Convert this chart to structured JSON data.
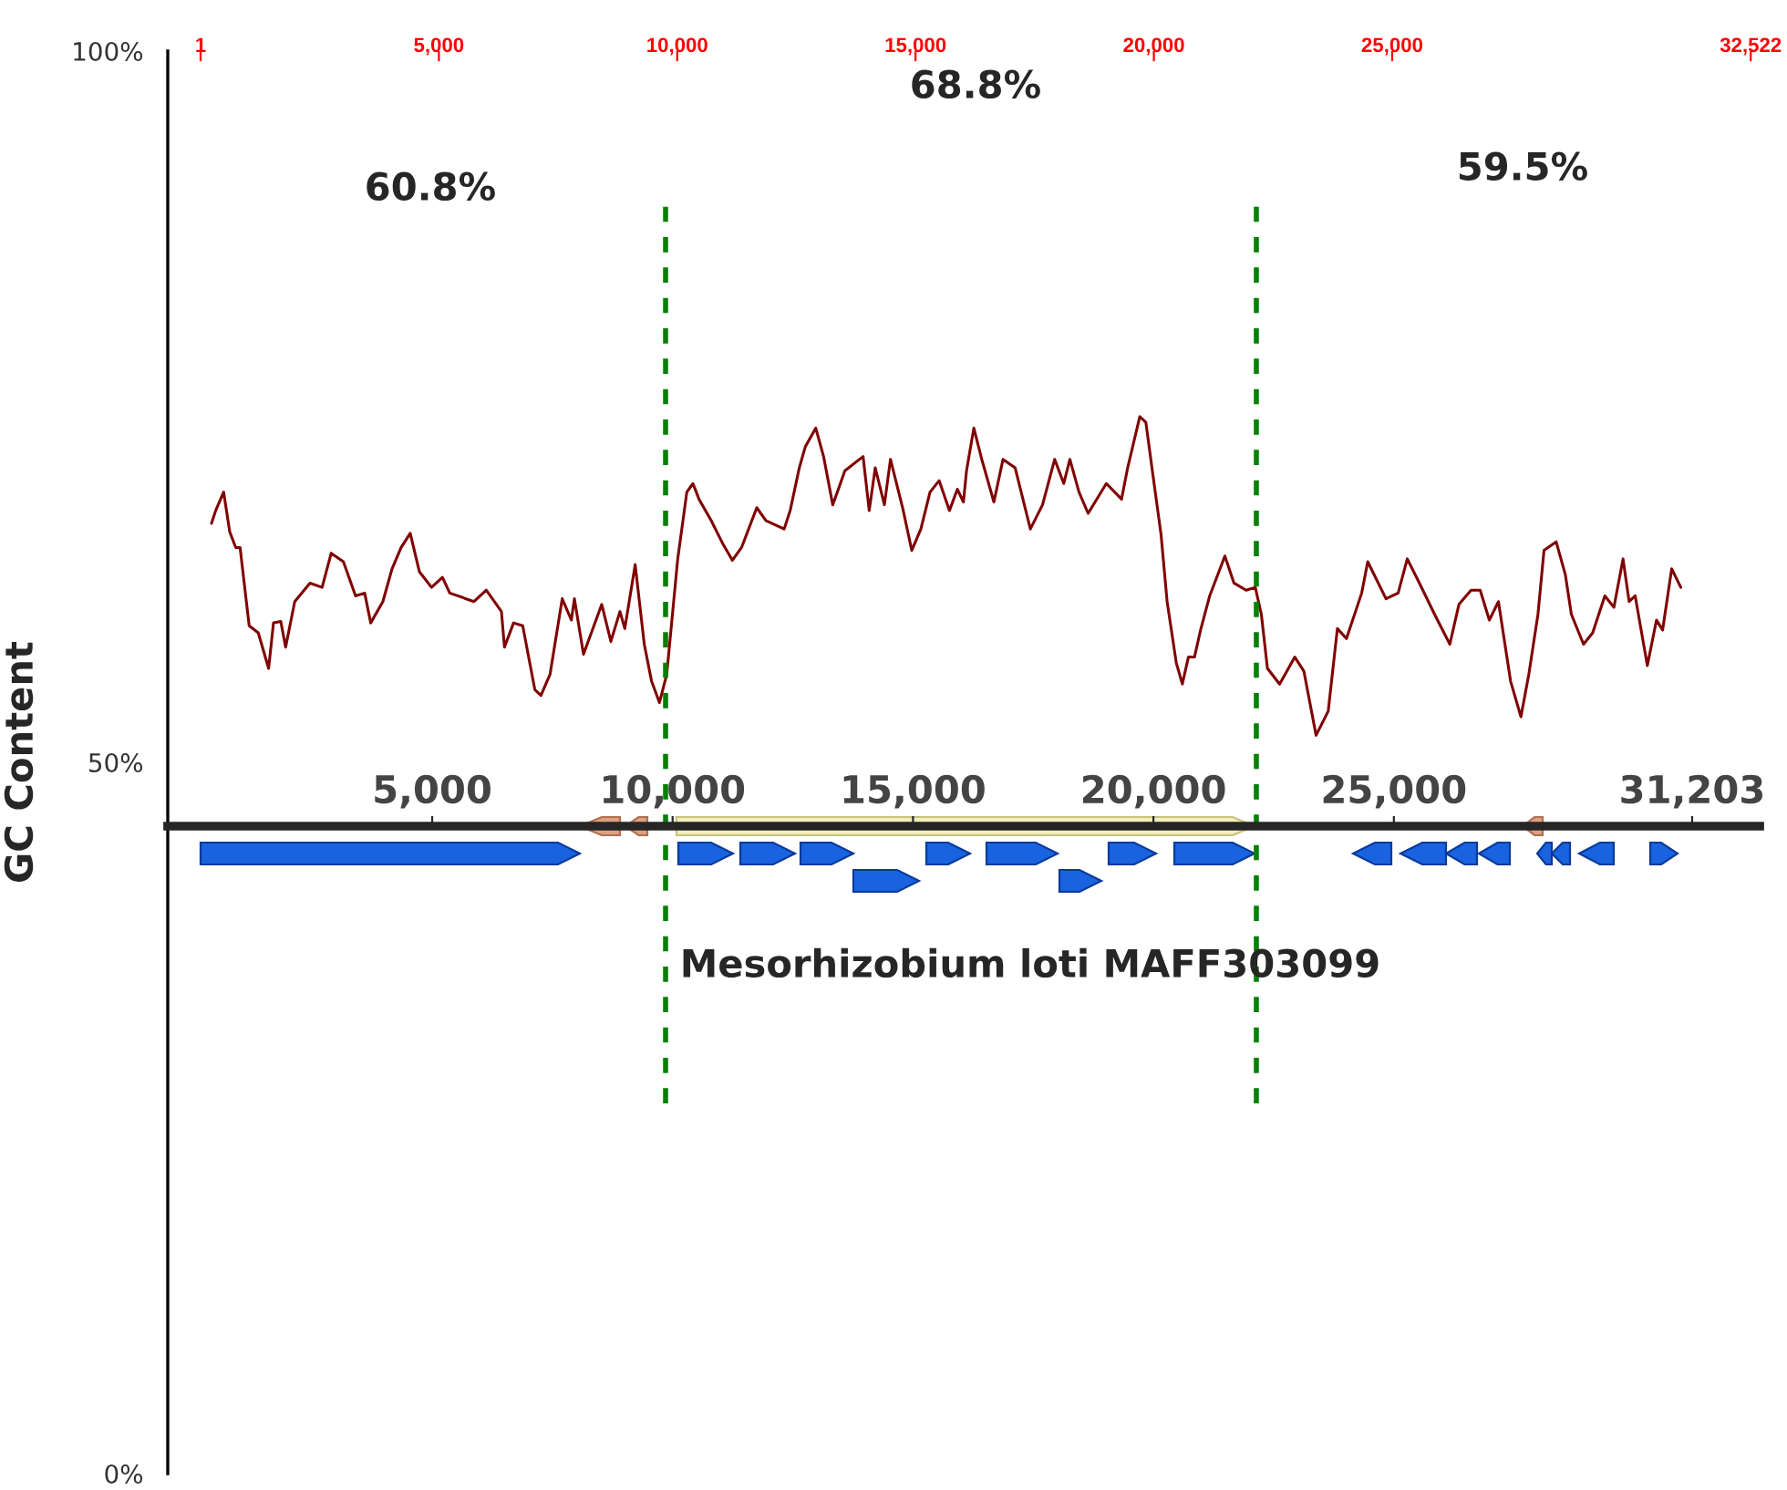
{
  "chart_data": {
    "type": "line",
    "ylabel": "GC Content",
    "xlim": [
      -688,
      32709
    ],
    "xticks": [
      1,
      {
        "value": 5000,
        "label": "5,000"
      },
      {
        "value": 10000,
        "label": "10,000"
      },
      {
        "value": 15000,
        "label": "15,000"
      },
      {
        "value": 20000,
        "label": "20,000"
      },
      {
        "value": 25000,
        "label": "25,000"
      },
      {
        "value": 32522,
        "label": "32,522"
      }
    ],
    "x2lim": [
      -499,
      32607
    ],
    "x2ticks": [
      {
        "value": 5000,
        "label": "5,000"
      },
      {
        "value": 10000,
        "label": "10,000"
      },
      {
        "value": 15000,
        "label": "15,000"
      },
      {
        "value": 20000,
        "label": "20,000"
      },
      {
        "value": 25000,
        "label": "25,000"
      },
      {
        "value": 31203,
        "label": "31,203"
      }
    ],
    "ylim": [
      0,
      100
    ],
    "yticks": [
      {
        "value": 0,
        "label": "0%"
      },
      {
        "value": 50,
        "label": "50%"
      },
      {
        "value": 100,
        "label": "100%"
      }
    ],
    "grid": false,
    "x": [
      229,
      318,
      484,
      612,
      739,
      829,
      1020,
      1211,
      1428,
      1530,
      1683,
      1785,
      1976,
      2295,
      2550,
      2741,
      2997,
      3252,
      3443,
      3570,
      3825,
      4017,
      4208,
      4399,
      4591,
      4846,
      5075,
      5228,
      5738,
      5994,
      6312,
      6376,
      6567,
      6759,
      7014,
      7141,
      7333,
      7588,
      7779,
      7843,
      8034,
      8417,
      8608,
      8799,
      8901,
      9118,
      9309,
      9462,
      9628,
      9781,
      9883,
      10011,
      10202,
      10330,
      10457,
      10712,
      10967,
      11158,
      11350,
      11669,
      11860,
      12243,
      12370,
      12561,
      12689,
      12906,
      13071,
      13263,
      13518,
      13900,
      14028,
      14155,
      14347,
      14474,
      14729,
      14921,
      15112,
      15304,
      15495,
      15712,
      15877,
      16005,
      16070,
      16223,
      16389,
      16644,
      16835,
      17090,
      17409,
      17664,
      17919,
      18110,
      18238,
      18429,
      18621,
      19003,
      19322,
      19450,
      19705,
      19832,
      19960,
      20151,
      20278,
      20470,
      20597,
      20725,
      20852,
      20980,
      21171,
      21490,
      21681,
      21936,
      22128,
      22255,
      22383,
      22638,
      22957,
      23148,
      23403,
      23658,
      23850,
      24041,
      24360,
      24487,
      24870,
      25125,
      25316,
      25571,
      25890,
      26209,
      26400,
      26655,
      26846,
      27038,
      27229,
      27484,
      27701,
      27867,
      28058,
      28185,
      28440,
      28632,
      28759,
      29014,
      29206,
      29461,
      29652,
      29843,
      29971,
      30098,
      30353,
      30545,
      30673,
      30864,
      31055
    ],
    "series": [
      {
        "color": "#800000",
        "values": [
          66.8,
          67.7,
          69.0,
          66.2,
          65.1,
          65.1,
          59.6,
          59.1,
          56.6,
          59.8,
          59.9,
          58.1,
          61.3,
          62.6,
          62.3,
          64.7,
          64.1,
          61.7,
          61.9,
          59.8,
          61.3,
          63.6,
          65.1,
          66.1,
          63.4,
          62.3,
          63.0,
          61.9,
          61.3,
          62.1,
          60.6,
          58.1,
          59.8,
          59.6,
          55.1,
          54.7,
          56.2,
          61.5,
          60.0,
          61.5,
          57.6,
          61.1,
          58.5,
          60.6,
          59.4,
          63.9,
          58.3,
          55.7,
          54.2,
          56.2,
          59.8,
          64.3,
          69.0,
          69.6,
          68.5,
          67.0,
          65.3,
          64.2,
          65.1,
          67.9,
          67.0,
          66.4,
          67.7,
          70.7,
          72.2,
          73.5,
          71.5,
          68.1,
          70.5,
          71.5,
          67.7,
          70.7,
          68.1,
          71.3,
          67.9,
          64.9,
          66.4,
          69.0,
          69.8,
          67.7,
          69.2,
          68.3,
          70.5,
          73.5,
          71.3,
          68.3,
          71.3,
          70.7,
          66.4,
          68.1,
          71.3,
          69.6,
          71.3,
          69.0,
          67.5,
          69.6,
          68.5,
          70.7,
          74.3,
          73.9,
          70.7,
          66.0,
          61.3,
          57.0,
          55.5,
          57.4,
          57.4,
          59.3,
          61.7,
          64.5,
          62.6,
          62.1,
          62.3,
          60.4,
          56.6,
          55.5,
          57.4,
          56.4,
          51.9,
          53.6,
          59.4,
          58.7,
          61.9,
          64.1,
          61.5,
          61.9,
          64.3,
          62.6,
          60.4,
          58.3,
          61.1,
          62.1,
          62.1,
          60.0,
          61.3,
          55.7,
          53.2,
          56.2,
          60.4,
          64.9,
          65.5,
          63.2,
          60.4,
          58.3,
          59.1,
          61.7,
          60.9,
          64.3,
          61.3,
          61.7,
          56.8,
          60.0,
          59.3,
          63.6,
          62.3
        ]
      }
    ],
    "ref_lines": [
      {
        "axis": "x",
        "value": 9756,
        "color": "#008000",
        "line_style": "dashed"
      },
      {
        "axis": "x",
        "value": 22150,
        "color": "#008000",
        "line_style": "dashed"
      }
    ],
    "annotations": [
      "60.8%",
      "68.8%",
      "59.5%",
      "Mesorhizobium loti MAFF303099"
    ]
  }
}
